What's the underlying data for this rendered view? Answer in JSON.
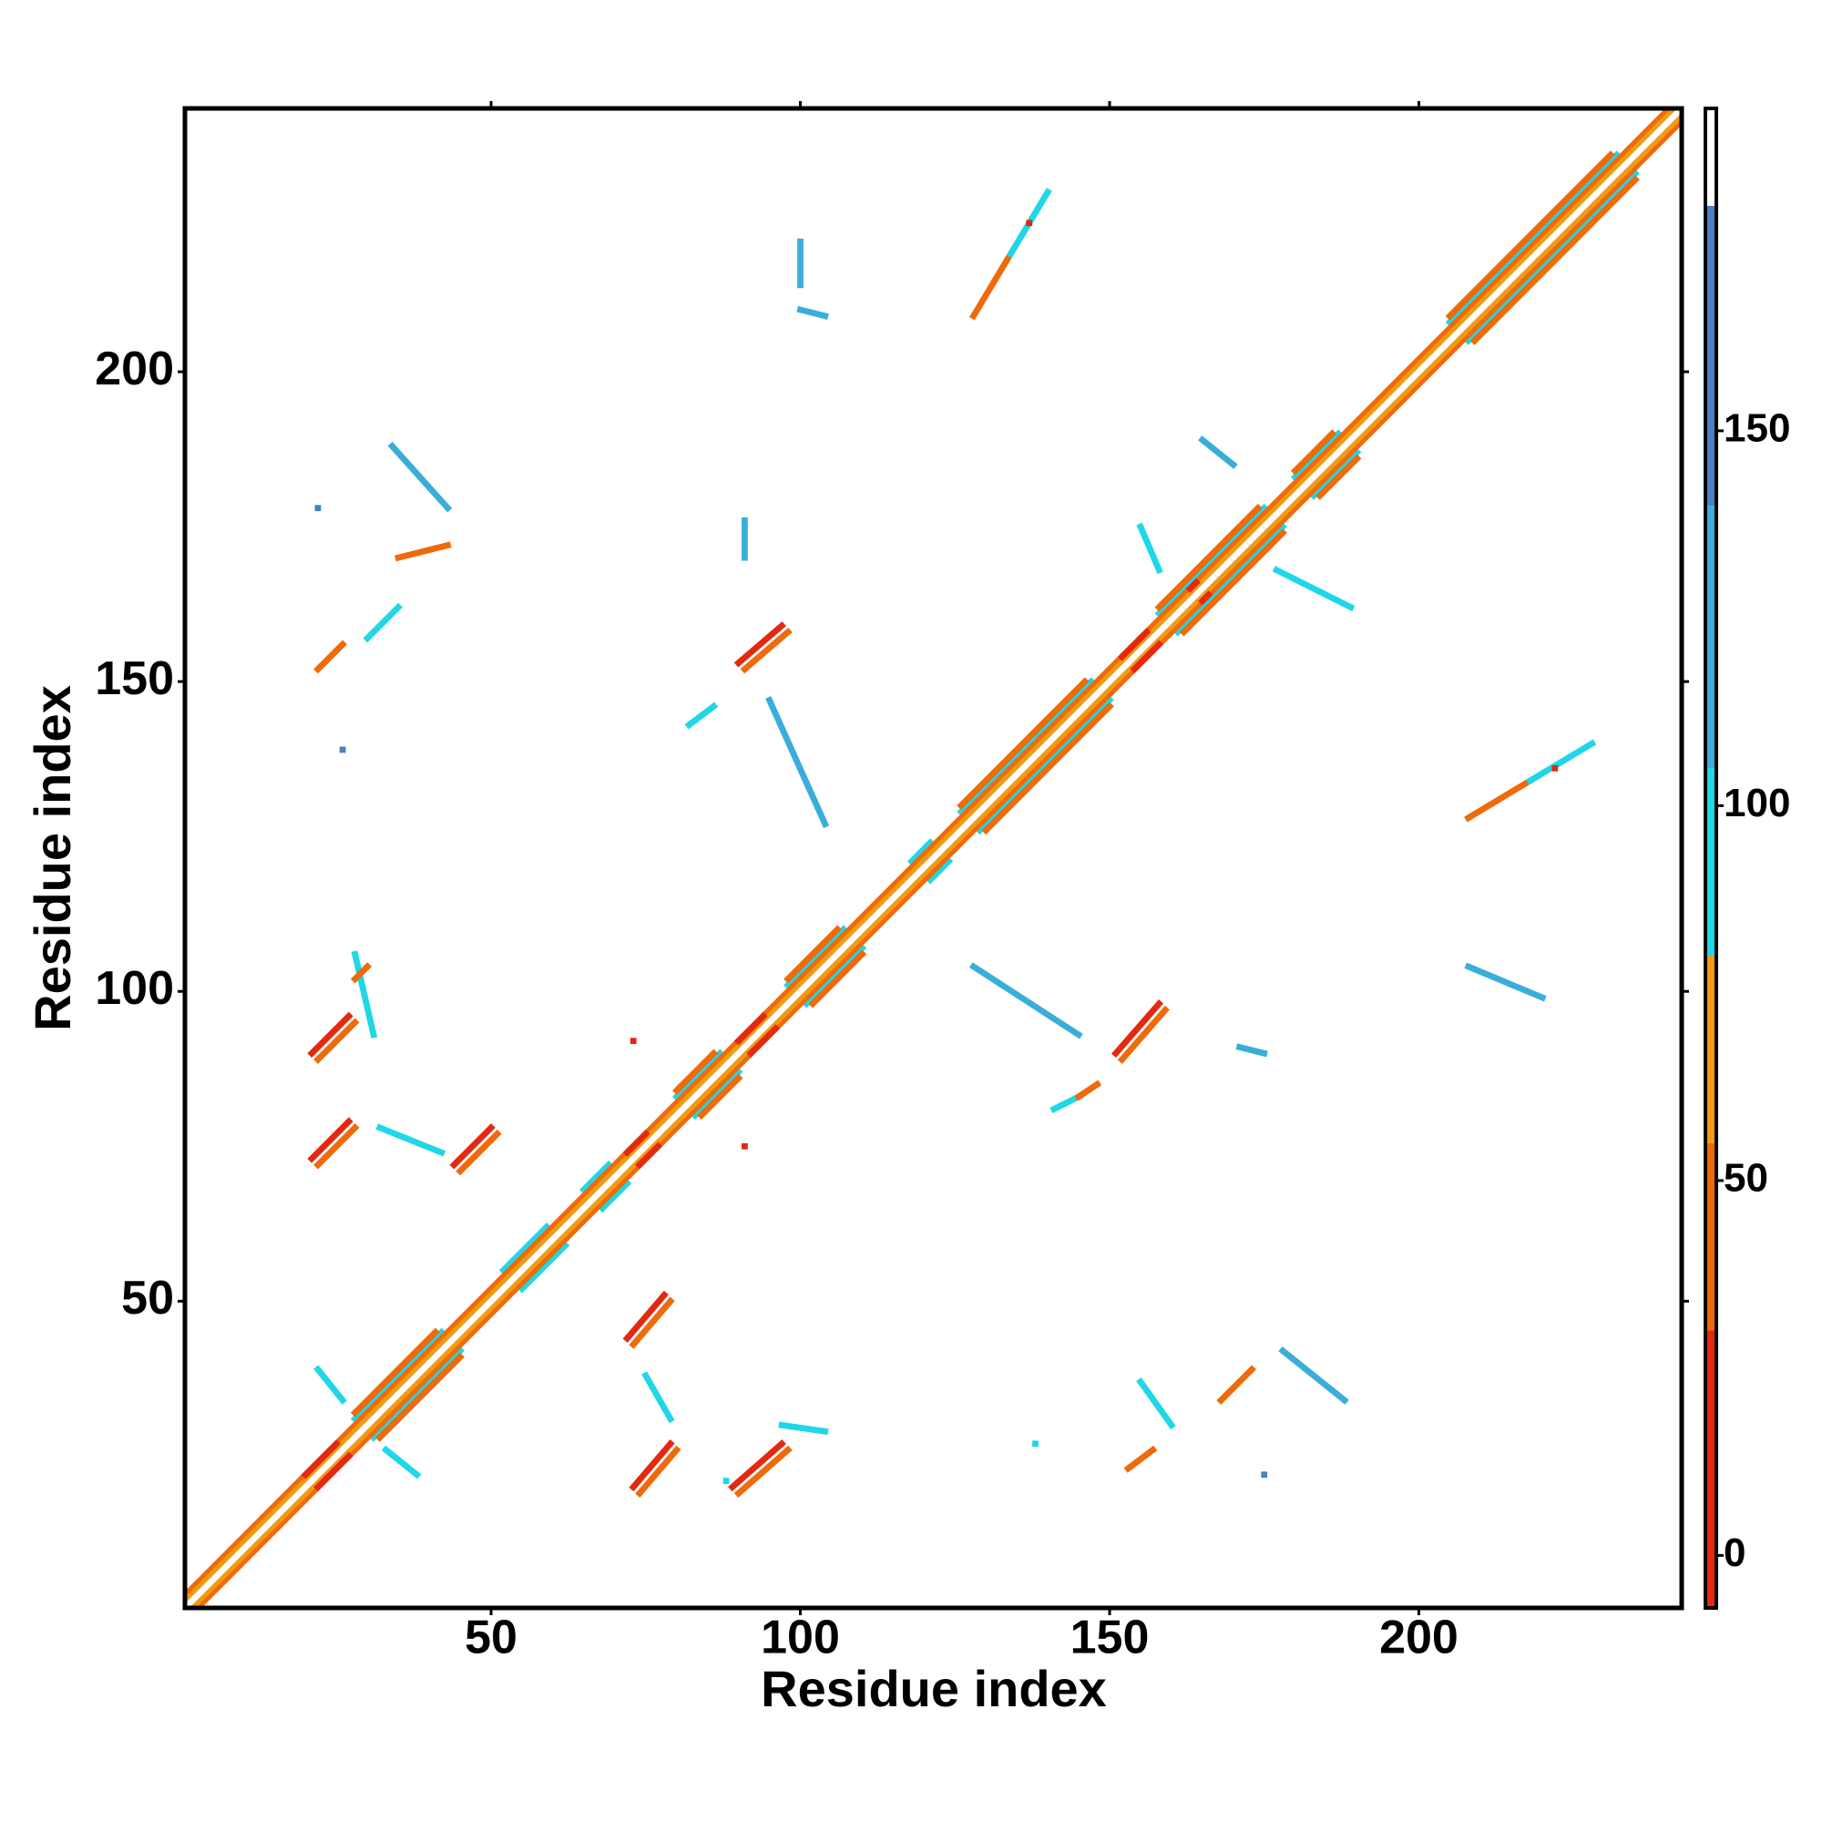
{
  "chart_data": {
    "type": "contact-map",
    "x_label": "Residue index",
    "y_label": "Residue index",
    "xlim": [
      0.5,
      242.5
    ],
    "ylim": [
      0.5,
      242.5
    ],
    "xticks": [
      50,
      100,
      150,
      200
    ],
    "yticks": [
      50,
      100,
      150,
      200
    ],
    "colorbar": {
      "lim": [
        -7,
        193
      ],
      "ticks": [
        0,
        50,
        100,
        150
      ],
      "bands": [
        {
          "from": -7,
          "to": 30,
          "color": "#e32910"
        },
        {
          "from": 30,
          "to": 55,
          "color": "#ee6a0a"
        },
        {
          "from": 55,
          "to": 80,
          "color": "#f29a12"
        },
        {
          "from": 80,
          "to": 105,
          "color": "#1fd7e6"
        },
        {
          "from": 105,
          "to": 140,
          "color": "#3aaed8"
        },
        {
          "from": 140,
          "to": 180,
          "color": "#4a7fc0"
        },
        {
          "from": 180,
          "to": 193,
          "color": "#ffffff"
        }
      ]
    },
    "segments": [
      {
        "x": [
          28,
          42
        ],
        "y": [
          31,
          45
        ],
        "value": 95
      },
      {
        "x": [
          31,
          45
        ],
        "y": [
          28,
          42
        ],
        "value": 95
      },
      {
        "x": [
          28,
          41
        ],
        "y": [
          32,
          45
        ],
        "value": 40
      },
      {
        "x": [
          32,
          45
        ],
        "y": [
          28,
          41
        ],
        "value": 40
      },
      {
        "x": [
          52,
          59
        ],
        "y": [
          55,
          62
        ],
        "value": 95
      },
      {
        "x": [
          55,
          62
        ],
        "y": [
          52,
          59
        ],
        "value": 95
      },
      {
        "x": [
          65,
          69
        ],
        "y": [
          68,
          72
        ],
        "value": 95
      },
      {
        "x": [
          68,
          72
        ],
        "y": [
          65,
          69
        ],
        "value": 95
      },
      {
        "x": [
          80,
          87
        ],
        "y": [
          83,
          90
        ],
        "value": 95
      },
      {
        "x": [
          83,
          90
        ],
        "y": [
          80,
          87
        ],
        "value": 95
      },
      {
        "x": [
          80,
          86
        ],
        "y": [
          84,
          90
        ],
        "value": 40
      },
      {
        "x": [
          84,
          90
        ],
        "y": [
          80,
          86
        ],
        "value": 40
      },
      {
        "x": [
          98,
          107
        ],
        "y": [
          101,
          110
        ],
        "value": 95
      },
      {
        "x": [
          101,
          110
        ],
        "y": [
          98,
          107
        ],
        "value": 95
      },
      {
        "x": [
          98,
          106
        ],
        "y": [
          102,
          110
        ],
        "value": 40
      },
      {
        "x": [
          102,
          110
        ],
        "y": [
          98,
          106
        ],
        "value": 40
      },
      {
        "x": [
          118,
          121
        ],
        "y": [
          121,
          124
        ],
        "value": 95
      },
      {
        "x": [
          121,
          124
        ],
        "y": [
          118,
          121
        ],
        "value": 95
      },
      {
        "x": [
          126,
          147
        ],
        "y": [
          129,
          150
        ],
        "value": 95
      },
      {
        "x": [
          129,
          150
        ],
        "y": [
          126,
          147
        ],
        "value": 95
      },
      {
        "x": [
          126,
          146
        ],
        "y": [
          130,
          150
        ],
        "value": 40
      },
      {
        "x": [
          130,
          150
        ],
        "y": [
          126,
          146
        ],
        "value": 40
      },
      {
        "x": [
          158,
          175
        ],
        "y": [
          161,
          178
        ],
        "value": 95
      },
      {
        "x": [
          161,
          178
        ],
        "y": [
          158,
          175
        ],
        "value": 95
      },
      {
        "x": [
          158,
          174
        ],
        "y": [
          162,
          178
        ],
        "value": 40
      },
      {
        "x": [
          162,
          178
        ],
        "y": [
          158,
          174
        ],
        "value": 40
      },
      {
        "x": [
          180,
          187
        ],
        "y": [
          183,
          190
        ],
        "value": 95
      },
      {
        "x": [
          183,
          190
        ],
        "y": [
          180,
          187
        ],
        "value": 95
      },
      {
        "x": [
          180,
          186
        ],
        "y": [
          184,
          190
        ],
        "value": 40
      },
      {
        "x": [
          184,
          190
        ],
        "y": [
          180,
          186
        ],
        "value": 40
      },
      {
        "x": [
          205,
          232
        ],
        "y": [
          208,
          235
        ],
        "value": 95
      },
      {
        "x": [
          208,
          235
        ],
        "y": [
          205,
          232
        ],
        "value": 95
      },
      {
        "x": [
          205,
          231
        ],
        "y": [
          209,
          235
        ],
        "value": 40
      },
      {
        "x": [
          209,
          235
        ],
        "y": [
          205,
          231
        ],
        "value": 40
      },
      {
        "x": [
          1,
          240
        ],
        "y": [
          3,
          242
        ],
        "value": 45
      },
      {
        "x": [
          3,
          242
        ],
        "y": [
          1,
          240
        ],
        "value": 45
      },
      {
        "x": [
          1,
          241
        ],
        "y": [
          2,
          242
        ],
        "value": 65
      },
      {
        "x": [
          2,
          242
        ],
        "y": [
          1,
          241
        ],
        "value": 65
      },
      {
        "x": [
          20,
          25
        ],
        "y": [
          22,
          27
        ],
        "value": 10
      },
      {
        "x": [
          22,
          27
        ],
        "y": [
          20,
          25
        ],
        "value": 10
      },
      {
        "x": [
          72,
          75
        ],
        "y": [
          74,
          77
        ],
        "value": 10
      },
      {
        "x": [
          74,
          77
        ],
        "y": [
          72,
          75
        ],
        "value": 10
      },
      {
        "x": [
          90,
          94
        ],
        "y": [
          92,
          96
        ],
        "value": 10
      },
      {
        "x": [
          92,
          96
        ],
        "y": [
          90,
          94
        ],
        "value": 10
      },
      {
        "x": [
          152,
          156
        ],
        "y": [
          154,
          158
        ],
        "value": 10
      },
      {
        "x": [
          154,
          158
        ],
        "y": [
          152,
          156
        ],
        "value": 10
      },
      {
        "x": [
          163,
          164
        ],
        "y": [
          165,
          166
        ],
        "value": 10
      },
      {
        "x": [
          165,
          166
        ],
        "y": [
          163,
          164
        ],
        "value": 10
      },
      {
        "x": [
          1,
          242
        ],
        "y": [
          1,
          242
        ],
        "value": 190
      },
      {
        "x": [
          22,
          28
        ],
        "y": [
          89,
          95
        ],
        "value": 40
      },
      {
        "x": [
          21,
          27
        ],
        "y": [
          90,
          96
        ],
        "value": 10
      },
      {
        "x": [
          22,
          28
        ],
        "y": [
          72,
          78
        ],
        "value": 40
      },
      {
        "x": [
          21,
          27
        ],
        "y": [
          73,
          79
        ],
        "value": 10
      },
      {
        "x": [
          45,
          51
        ],
        "y": [
          71,
          77
        ],
        "value": 40
      },
      {
        "x": [
          44,
          50
        ],
        "y": [
          72,
          78
        ],
        "value": 10
      },
      {
        "x": [
          73,
          79
        ],
        "y": [
          43,
          50
        ],
        "value": 40
      },
      {
        "x": [
          72,
          78
        ],
        "y": [
          44,
          51
        ],
        "value": 10
      },
      {
        "x": [
          74,
          80
        ],
        "y": [
          19,
          26
        ],
        "value": 40
      },
      {
        "x": [
          73,
          79
        ],
        "y": [
          20,
          27
        ],
        "value": 10
      },
      {
        "x": [
          90,
          98
        ],
        "y": [
          19,
          26
        ],
        "value": 40
      },
      {
        "x": [
          89,
          97
        ],
        "y": [
          20,
          27
        ],
        "value": 10
      },
      {
        "x": [
          91,
          98
        ],
        "y": [
          152,
          158
        ],
        "value": 40
      },
      {
        "x": [
          90,
          97
        ],
        "y": [
          153,
          159
        ],
        "value": 10
      },
      {
        "x": [
          152,
          159
        ],
        "y": [
          89,
          97
        ],
        "value": 40
      },
      {
        "x": [
          151,
          158
        ],
        "y": [
          90,
          98
        ],
        "value": 10
      },
      {
        "x": [
          100,
          100
        ],
        "y": [
          221,
          214
        ],
        "value": 120
      },
      {
        "x": [
          100,
          104
        ],
        "y": [
          210,
          209
        ],
        "value": 120
      },
      {
        "x": [
          128,
          134
        ],
        "y": [
          209,
          219
        ],
        "value": 45
      },
      {
        "x": [
          134,
          140
        ],
        "y": [
          219,
          229
        ],
        "value": 95
      },
      {
        "x": [
          137,
          137
        ],
        "y": [
          224,
          224
        ],
        "value": 10
      },
      {
        "x": [
          34,
          43
        ],
        "y": [
          188,
          178
        ],
        "value": 110
      },
      {
        "x": [
          35,
          43
        ],
        "y": [
          170,
          172
        ],
        "value": 45
      },
      {
        "x": [
          22,
          26
        ],
        "y": [
          152,
          156
        ],
        "value": 45
      },
      {
        "x": [
          30,
          35
        ],
        "y": [
          157,
          162
        ],
        "value": 100
      },
      {
        "x": [
          95,
          104
        ],
        "y": [
          147,
          127
        ],
        "value": 115
      },
      {
        "x": [
          82,
          86
        ],
        "y": [
          143,
          146
        ],
        "value": 100
      },
      {
        "x": [
          91,
          91
        ],
        "y": [
          170,
          176
        ],
        "value": 110
      },
      {
        "x": [
          28,
          31
        ],
        "y": [
          106,
          93
        ],
        "value": 100
      },
      {
        "x": [
          28,
          30
        ],
        "y": [
          102,
          104
        ],
        "value": 45
      },
      {
        "x": [
          32,
          42
        ],
        "y": [
          78,
          74
        ],
        "value": 100
      },
      {
        "x": [
          75,
          79
        ],
        "y": [
          38,
          31
        ],
        "value": 100
      },
      {
        "x": [
          97,
          104
        ],
        "y": [
          30,
          29
        ],
        "value": 100
      },
      {
        "x": [
          128,
          145
        ],
        "y": [
          104,
          93
        ],
        "value": 110
      },
      {
        "x": [
          141,
          145
        ],
        "y": [
          81,
          83
        ],
        "value": 100
      },
      {
        "x": [
          145,
          148
        ],
        "y": [
          83,
          85
        ],
        "value": 45
      },
      {
        "x": [
          171,
          175
        ],
        "y": [
          91,
          90
        ],
        "value": 110
      },
      {
        "x": [
          155,
          160
        ],
        "y": [
          37,
          30
        ],
        "value": 100
      },
      {
        "x": [
          153,
          157
        ],
        "y": [
          23,
          26
        ],
        "value": 45
      },
      {
        "x": [
          168,
          173
        ],
        "y": [
          34,
          39
        ],
        "value": 45
      },
      {
        "x": [
          178,
          188
        ],
        "y": [
          42,
          34
        ],
        "value": 110
      },
      {
        "x": [
          175,
          175
        ],
        "y": [
          22,
          22
        ],
        "value": 150
      },
      {
        "x": [
          138,
          138
        ],
        "y": [
          27,
          27
        ],
        "value": 100
      },
      {
        "x": [
          208,
          220
        ],
        "y": [
          104,
          99
        ],
        "value": 115
      },
      {
        "x": [
          208,
          218
        ],
        "y": [
          128,
          134
        ],
        "value": 45
      },
      {
        "x": [
          218,
          228
        ],
        "y": [
          134,
          140
        ],
        "value": 95
      },
      {
        "x": [
          222,
          222
        ],
        "y": [
          136,
          136
        ],
        "value": 10
      },
      {
        "x": [
          155,
          158
        ],
        "y": [
          175,
          168
        ],
        "value": 100
      },
      {
        "x": [
          165,
          170
        ],
        "y": [
          189,
          185
        ],
        "value": 110
      },
      {
        "x": [
          177,
          189
        ],
        "y": [
          168,
          162
        ],
        "value": 105
      },
      {
        "x": [
          22,
          22
        ],
        "y": [
          178,
          178
        ],
        "value": 150
      },
      {
        "x": [
          26,
          26
        ],
        "y": [
          139,
          139
        ],
        "value": 150
      },
      {
        "x": [
          33,
          38
        ],
        "y": [
          26,
          22
        ],
        "value": 100
      },
      {
        "x": [
          22,
          26
        ],
        "y": [
          39,
          34
        ],
        "value": 100
      },
      {
        "x": [
          73,
          73
        ],
        "y": [
          92,
          92
        ],
        "value": 10
      },
      {
        "x": [
          91,
          91
        ],
        "y": [
          75,
          75
        ],
        "value": 10
      },
      {
        "x": [
          88,
          88
        ],
        "y": [
          21,
          21
        ],
        "value": 95
      }
    ]
  }
}
